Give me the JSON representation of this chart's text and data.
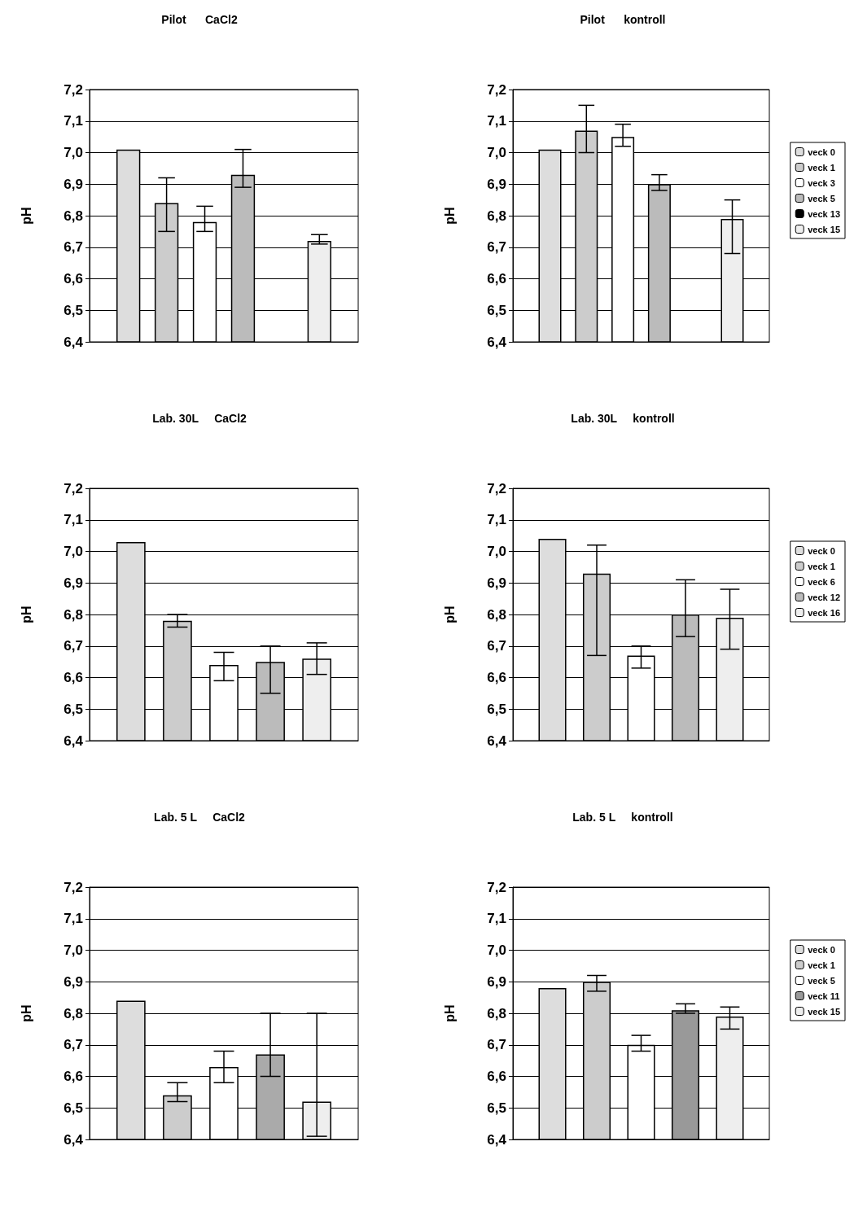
{
  "chart_data": [
    {
      "type": "bar",
      "title": "Pilot      CaCl2",
      "ylabel": "pH",
      "categories": [
        null
      ],
      "ylim": [
        6.4,
        7.2
      ],
      "yticks": [
        {
          "value": 6.4,
          "label": "6,4"
        },
        {
          "value": 6.5,
          "label": "6,5"
        },
        {
          "value": 6.6,
          "label": "6,6"
        },
        {
          "value": 6.7,
          "label": "6,7"
        },
        {
          "value": 6.8,
          "label": "6,8"
        },
        {
          "value": 6.9,
          "label": "6,9"
        },
        {
          "value": 7.0,
          "label": "7,0"
        },
        {
          "value": 7.1,
          "label": "7,1"
        },
        {
          "value": 7.2,
          "label": "7,2"
        }
      ],
      "grid": "y",
      "legend": false,
      "series": [
        {
          "color": "#dddddd",
          "values": [
            7.01
          ]
        },
        {
          "color": "#cccccc",
          "values": [
            6.84
          ],
          "errors": [
            [
              6.75,
              6.92
            ]
          ]
        },
        {
          "color": "#ffffff",
          "values": [
            6.78
          ],
          "errors": [
            [
              6.75,
              6.83
            ]
          ]
        },
        {
          "color": "#bbbbbb",
          "values": [
            6.93
          ],
          "errors": [
            [
              6.89,
              7.01
            ]
          ]
        },
        {
          "color": "#000000",
          "values": [
            null
          ]
        },
        {
          "color": "#eeeeee",
          "values": [
            6.72
          ],
          "errors": [
            [
              6.71,
              6.74
            ]
          ]
        }
      ]
    },
    {
      "type": "bar",
      "title": "Pilot      kontroll",
      "ylabel": "pH",
      "categories": [
        null
      ],
      "ylim": [
        6.4,
        7.2
      ],
      "yticks": [
        {
          "value": 6.4,
          "label": "6,4"
        },
        {
          "value": 6.5,
          "label": "6,5"
        },
        {
          "value": 6.6,
          "label": "6,6"
        },
        {
          "value": 6.7,
          "label": "6,7"
        },
        {
          "value": 6.8,
          "label": "6,8"
        },
        {
          "value": 6.9,
          "label": "6,9"
        },
        {
          "value": 7.0,
          "label": "7,0"
        },
        {
          "value": 7.1,
          "label": "7,1"
        },
        {
          "value": 7.2,
          "label": "7,2"
        }
      ],
      "grid": "y",
      "legend": "right",
      "series": [
        {
          "name": "veck 0",
          "color": "#dddddd",
          "values": [
            7.01
          ]
        },
        {
          "name": "veck 1",
          "color": "#cccccc",
          "values": [
            7.07
          ],
          "errors": [
            [
              7.0,
              7.15
            ]
          ]
        },
        {
          "name": "veck 3",
          "color": "#ffffff",
          "values": [
            7.05
          ],
          "errors": [
            [
              7.02,
              7.09
            ]
          ]
        },
        {
          "name": "veck 5",
          "color": "#bbbbbb",
          "values": [
            6.9
          ],
          "errors": [
            [
              6.88,
              6.93
            ]
          ]
        },
        {
          "name": "veck 13",
          "color": "#000000",
          "values": [
            null
          ]
        },
        {
          "name": "veck 15",
          "color": "#eeeeee",
          "values": [
            6.79
          ],
          "errors": [
            [
              6.68,
              6.85
            ]
          ]
        }
      ]
    },
    {
      "type": "bar",
      "title": "Lab. 30L     CaCl2",
      "ylabel": "pH",
      "categories": [
        null
      ],
      "ylim": [
        6.4,
        7.2
      ],
      "yticks": [
        {
          "value": 6.4,
          "label": "6,4"
        },
        {
          "value": 6.5,
          "label": "6,5"
        },
        {
          "value": 6.6,
          "label": "6,6"
        },
        {
          "value": 6.7,
          "label": "6,7"
        },
        {
          "value": 6.8,
          "label": "6,8"
        },
        {
          "value": 6.9,
          "label": "6,9"
        },
        {
          "value": 7.0,
          "label": "7,0"
        },
        {
          "value": 7.1,
          "label": "7,1"
        },
        {
          "value": 7.2,
          "label": "7,2"
        }
      ],
      "grid": "y",
      "legend": false,
      "series": [
        {
          "color": "#dddddd",
          "values": [
            7.03
          ]
        },
        {
          "color": "#cccccc",
          "values": [
            6.78
          ],
          "errors": [
            [
              6.76,
              6.8
            ]
          ]
        },
        {
          "color": "#ffffff",
          "values": [
            6.64
          ],
          "errors": [
            [
              6.59,
              6.68
            ]
          ]
        },
        {
          "color": "#bbbbbb",
          "values": [
            6.65
          ],
          "errors": [
            [
              6.55,
              6.7
            ]
          ]
        },
        {
          "color": "#eeeeee",
          "values": [
            6.66
          ],
          "errors": [
            [
              6.61,
              6.71
            ]
          ]
        }
      ]
    },
    {
      "type": "bar",
      "title": "Lab. 30L     kontroll",
      "ylabel": "pH",
      "categories": [
        null
      ],
      "ylim": [
        6.4,
        7.2
      ],
      "yticks": [
        {
          "value": 6.4,
          "label": "6,4"
        },
        {
          "value": 6.5,
          "label": "6,5"
        },
        {
          "value": 6.6,
          "label": "6,6"
        },
        {
          "value": 6.7,
          "label": "6,7"
        },
        {
          "value": 6.8,
          "label": "6,8"
        },
        {
          "value": 6.9,
          "label": "6,9"
        },
        {
          "value": 7.0,
          "label": "7,0"
        },
        {
          "value": 7.1,
          "label": "7,1"
        },
        {
          "value": 7.2,
          "label": "7,2"
        }
      ],
      "grid": "y",
      "legend": "right",
      "series": [
        {
          "name": "veck 0",
          "color": "#dddddd",
          "values": [
            7.04
          ]
        },
        {
          "name": "veck 1",
          "color": "#cccccc",
          "values": [
            6.93
          ],
          "errors": [
            [
              6.67,
              7.02
            ]
          ]
        },
        {
          "name": "veck 6",
          "color": "#ffffff",
          "values": [
            6.67
          ],
          "errors": [
            [
              6.63,
              6.7
            ]
          ]
        },
        {
          "name": "veck 12",
          "color": "#bbbbbb",
          "values": [
            6.8
          ],
          "errors": [
            [
              6.73,
              6.91
            ]
          ]
        },
        {
          "name": "veck 16",
          "color": "#eeeeee",
          "values": [
            6.79
          ],
          "errors": [
            [
              6.69,
              6.88
            ]
          ]
        }
      ]
    },
    {
      "type": "bar",
      "title": "Lab. 5 L     CaCl2",
      "ylabel": "pH",
      "categories": [
        null
      ],
      "ylim": [
        6.4,
        7.2
      ],
      "yticks": [
        {
          "value": 6.4,
          "label": "6,4"
        },
        {
          "value": 6.5,
          "label": "6,5"
        },
        {
          "value": 6.6,
          "label": "6,6"
        },
        {
          "value": 6.7,
          "label": "6,7"
        },
        {
          "value": 6.8,
          "label": "6,8"
        },
        {
          "value": 6.9,
          "label": "6,9"
        },
        {
          "value": 7.0,
          "label": "7,0"
        },
        {
          "value": 7.1,
          "label": "7,1"
        },
        {
          "value": 7.2,
          "label": "7,2"
        }
      ],
      "grid": "y",
      "legend": false,
      "series": [
        {
          "color": "#dddddd",
          "values": [
            6.84
          ]
        },
        {
          "color": "#cccccc",
          "values": [
            6.54
          ],
          "errors": [
            [
              6.52,
              6.58
            ]
          ]
        },
        {
          "color": "#ffffff",
          "values": [
            6.63
          ],
          "errors": [
            [
              6.58,
              6.68
            ]
          ]
        },
        {
          "color": "#aaaaaa",
          "values": [
            6.67
          ],
          "errors": [
            [
              6.6,
              6.8
            ]
          ]
        },
        {
          "color": "#eeeeee",
          "values": [
            6.52
          ],
          "errors": [
            [
              6.41,
              6.8
            ]
          ]
        }
      ]
    },
    {
      "type": "bar",
      "title": "Lab. 5 L     kontroll",
      "ylabel": "pH",
      "categories": [
        null
      ],
      "ylim": [
        6.4,
        7.2
      ],
      "yticks": [
        {
          "value": 6.4,
          "label": "6,4"
        },
        {
          "value": 6.5,
          "label": "6,5"
        },
        {
          "value": 6.6,
          "label": "6,6"
        },
        {
          "value": 6.7,
          "label": "6,7"
        },
        {
          "value": 6.8,
          "label": "6,8"
        },
        {
          "value": 6.9,
          "label": "6,9"
        },
        {
          "value": 7.0,
          "label": "7,0"
        },
        {
          "value": 7.1,
          "label": "7,1"
        },
        {
          "value": 7.2,
          "label": "7,2"
        }
      ],
      "grid": "y",
      "legend": "right",
      "series": [
        {
          "name": "veck 0",
          "color": "#dddddd",
          "values": [
            6.88
          ]
        },
        {
          "name": "veck 1",
          "color": "#cccccc",
          "values": [
            6.9
          ],
          "errors": [
            [
              6.87,
              6.92
            ]
          ]
        },
        {
          "name": "veck 5",
          "color": "#ffffff",
          "values": [
            6.7
          ],
          "errors": [
            [
              6.68,
              6.73
            ]
          ]
        },
        {
          "name": "veck 11",
          "color": "#999999",
          "values": [
            6.81
          ],
          "errors": [
            [
              6.8,
              6.83
            ]
          ]
        },
        {
          "name": "veck 15",
          "color": "#eeeeee",
          "values": [
            6.79
          ],
          "errors": [
            [
              6.75,
              6.82
            ]
          ]
        }
      ]
    }
  ]
}
